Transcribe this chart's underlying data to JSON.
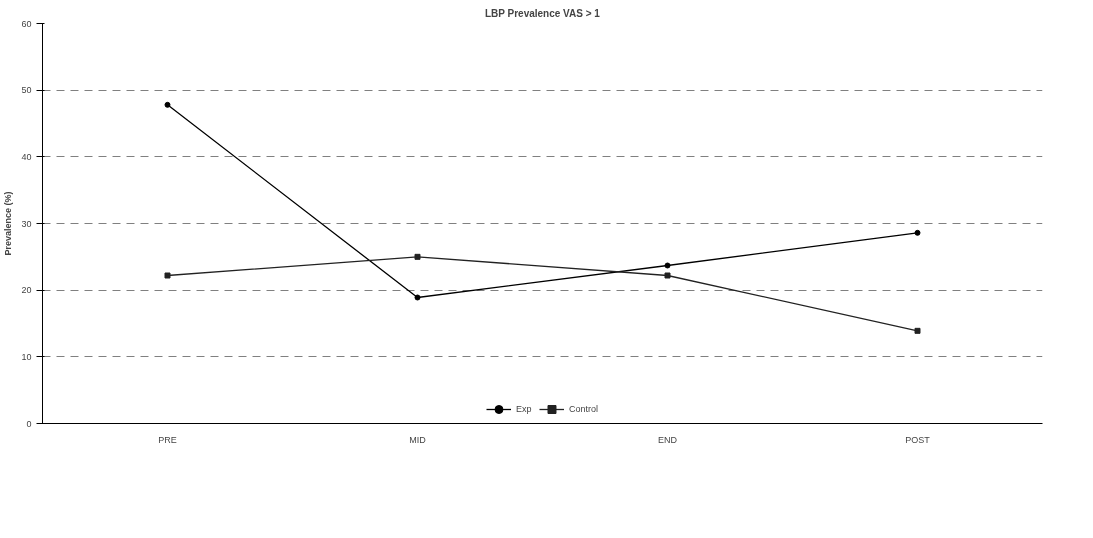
{
  "chart_data": {
    "type": "line",
    "title": "LBP Prevalence VAS > 1",
    "ylabel": "Prevalence (%)",
    "categories": [
      "PRE",
      "MID",
      "END",
      "POST"
    ],
    "series": [
      {
        "name": "Exp",
        "color": "#000000",
        "marker": "circle",
        "values": [
          47.8,
          18.9,
          23.7,
          28.6
        ]
      },
      {
        "name": "Control",
        "color": "#222222",
        "marker": "square",
        "values": [
          22.2,
          25.0,
          22.2,
          13.9
        ]
      }
    ],
    "ylim": [
      0,
      60
    ],
    "yticks": [
      0,
      10,
      20,
      30,
      40,
      50,
      60
    ],
    "grid": "y",
    "legend": "bottom",
    "line_style": "solid"
  }
}
